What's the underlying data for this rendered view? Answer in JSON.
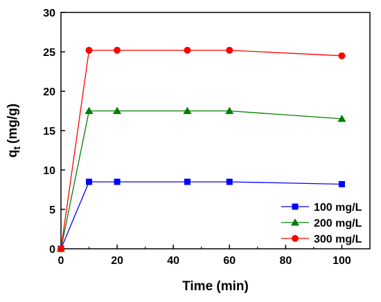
{
  "chart_data": {
    "type": "line",
    "title": "",
    "xlabel": "Time (min)",
    "ylabel_main": "q",
    "ylabel_sub": "t",
    "ylabel_unit": "(mg/g)",
    "xlim": [
      0,
      110
    ],
    "ylim": [
      0,
      30
    ],
    "xticks": [
      0,
      20,
      40,
      60,
      80,
      100
    ],
    "yticks": [
      0,
      5,
      10,
      15,
      20,
      25,
      30
    ],
    "grid": false,
    "legend_position": "bottom-right",
    "series": [
      {
        "name": "100 mg/L",
        "color": "#0000ff",
        "marker": "square",
        "x": [
          0,
          10,
          20,
          45,
          60,
          100
        ],
        "y": [
          0,
          8.5,
          8.5,
          8.5,
          8.5,
          8.2
        ]
      },
      {
        "name": "200 mg/L",
        "color": "#008000",
        "marker": "triangle",
        "x": [
          0,
          10,
          20,
          45,
          60,
          100
        ],
        "y": [
          0,
          17.5,
          17.5,
          17.5,
          17.5,
          16.5
        ]
      },
      {
        "name": "300 mg/L",
        "color": "#ff0000",
        "marker": "circle",
        "x": [
          0,
          10,
          20,
          45,
          60,
          100
        ],
        "y": [
          0,
          25.2,
          25.2,
          25.2,
          25.2,
          24.5
        ]
      }
    ]
  }
}
